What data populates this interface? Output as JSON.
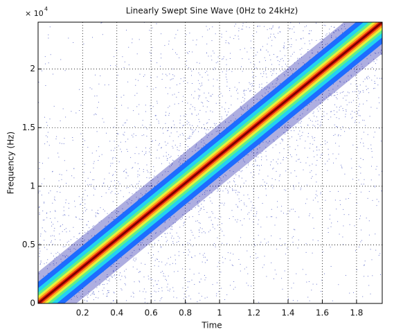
{
  "chart_data": {
    "type": "spectrogram",
    "title": "Linearly Swept Sine Wave (0Hz to 24kHz)",
    "x_label": "Time",
    "y_label": "Frequency (Hz)",
    "y_multiplier": "× 10",
    "y_multiplier_exp": "4",
    "sweep": {
      "x": [
        -0.06,
        1.95
      ],
      "values": [
        0,
        24000
      ]
    },
    "xlim": [
      -0.06,
      1.95
    ],
    "xticks": [
      0.2,
      0.4,
      0.6,
      0.8,
      1,
      1.2,
      1.4,
      1.6,
      1.8
    ],
    "ylim": [
      0,
      24000
    ],
    "yticks": [
      {
        "value": 0,
        "label": "0"
      },
      {
        "value": 5000,
        "label": "0.5"
      },
      {
        "value": 10000,
        "label": "1"
      },
      {
        "value": 15000,
        "label": "1.5"
      },
      {
        "value": 20000,
        "label": "2"
      }
    ],
    "grid": true,
    "colors": [
      "#1a1aa8",
      "#1e6cff",
      "#22d3f0",
      "#5ef08a",
      "#e8f23a",
      "#ff9a1a",
      "#e0200c",
      "#7a0000"
    ]
  }
}
